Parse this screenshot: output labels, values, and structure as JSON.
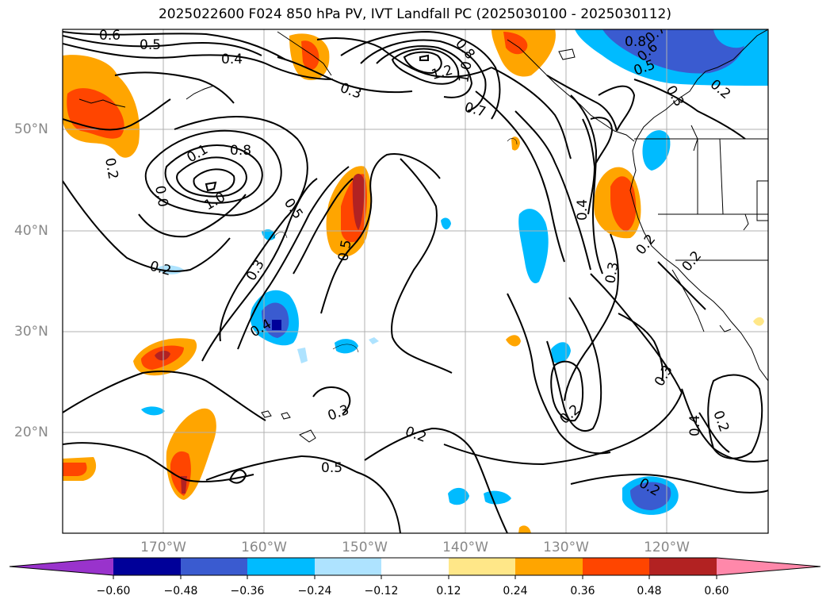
{
  "title": "2025022600 F024 850 hPa PV, IVT Landfall PC (2025030100 - 2025030112)",
  "axes": {
    "lon_labels": [
      "170°W",
      "160°W",
      "150°W",
      "140°W",
      "130°W",
      "120°W"
    ],
    "lat_labels": [
      "50°N",
      "40°N",
      "30°N",
      "20°N"
    ],
    "grid": true
  },
  "colorbar": {
    "orientation": "horizontal",
    "position": "bottom",
    "extend": "both",
    "tick_labels": [
      "−0.60",
      "−0.48",
      "−0.36",
      "−0.24",
      "−0.12",
      "0.12",
      "0.24",
      "0.36",
      "0.48",
      "0.60"
    ],
    "colors": [
      "#9933cc",
      "#000099",
      "#3a5bd0",
      "#00bbff",
      "#aee3ff",
      "#ffffff",
      "#ffe788",
      "#ffa500",
      "#ff4500",
      "#b22222",
      "#ff88aa"
    ]
  },
  "contour_labels": [
    "0.6",
    "0.5",
    "0.4",
    "0.3",
    "0.8",
    "1.2",
    "1.0",
    "0.7",
    "0.8",
    "0.7",
    "0.6",
    "0.5",
    "0.2",
    "0.3",
    "0.1",
    "0.8",
    "1.0",
    "0.0",
    "0.2",
    "0.5",
    "0.3",
    "0.2",
    "0.4",
    "0.5",
    "0.4",
    "0.3",
    "0.2",
    "0.2",
    "0.3",
    "0.2",
    "0.5",
    "0.2",
    "0.3",
    "0.4",
    "0.2",
    "0.2"
  ]
}
